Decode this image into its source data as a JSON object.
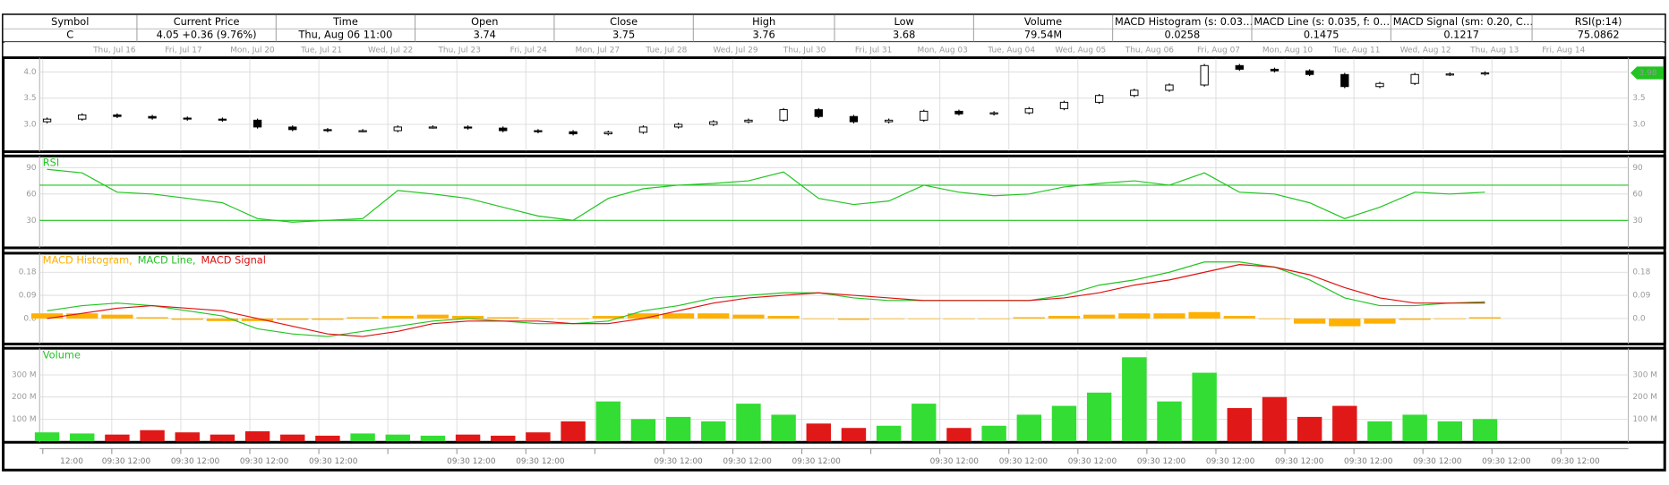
{
  "header": [
    {
      "label": "Symbol",
      "value": "C"
    },
    {
      "label": "Current Price",
      "value": "4.05 +0.36 (9.76%)"
    },
    {
      "label": "Time",
      "value": "Thu, Aug 06  11:00"
    },
    {
      "label": "Open",
      "value": "3.74"
    },
    {
      "label": "Close",
      "value": "3.75"
    },
    {
      "label": "High",
      "value": "3.76"
    },
    {
      "label": "Low",
      "value": "3.68"
    },
    {
      "label": "Volume",
      "value": "79.54M"
    },
    {
      "label": "MACD Histogram (s: 0.03…",
      "value": "0.0258"
    },
    {
      "label": "MACD Line (s: 0.035, f: 0…",
      "value": "0.1475"
    },
    {
      "label": "MACD Signal (sm: 0.20, C…",
      "value": "0.1217"
    },
    {
      "label": "RSI(p:14)",
      "value": "75.0862"
    }
  ],
  "date_labels": [
    "Thu, Jul 16",
    "Fri, Jul 17",
    "Mon, Jul 20",
    "Tue, Jul 21",
    "Wed, Jul 22",
    "Thu, Jul 23",
    "Fri, Jul 24",
    "Mon, Jul 27",
    "Tue, Jul 28",
    "Wed, Jul 29",
    "Thu, Jul 30",
    "Fri, Jul 31",
    "Mon, Aug 03",
    "Tue, Aug 04",
    "Wed, Aug 05",
    "Thu, Aug 06",
    "Fri, Aug 07",
    "Mon, Aug 10",
    "Tue, Aug 11",
    "Wed, Aug 12",
    "Thu, Aug 13",
    "Fri, Aug 14"
  ],
  "time_labels": [
    "12:00",
    "09:30 12:00",
    "09:30 12:00",
    "09:30 12:00",
    "09:30 12:00",
    null,
    "09:30 12:00",
    "09:30 12:00",
    null,
    "09:30 12:00",
    "09:30 12:00",
    "09:30 12:00",
    null,
    "09:30 12:00",
    "09:30 12:00",
    "09:30 12:00",
    "09:30 12:00",
    "09:30 12:00",
    "09:30 12:00",
    "09:30 12:00",
    "09:30 12:00",
    "09:30 12:00",
    "09:30 12:00"
  ],
  "chart_data": [
    {
      "type": "candlestick",
      "up_color": "#ffffff",
      "down_color": "#000000",
      "grid": true,
      "ylim": [
        2.5,
        4.25
      ],
      "yticks": [
        {
          "value": 3,
          "label": "3.0"
        },
        {
          "value": 3.5,
          "label": "3.5"
        },
        {
          "value": 4,
          "label": "4.0"
        }
      ],
      "last_label": "3.98",
      "last_color": "#22c422",
      "open": [
        3.05,
        3.1,
        3.18,
        3.15,
        3.12,
        3.1,
        3.08,
        2.95,
        2.9,
        2.88,
        2.88,
        2.95,
        2.95,
        2.93,
        2.88,
        2.86,
        2.82,
        2.85,
        2.95,
        3.0,
        3.05,
        3.08,
        3.28,
        3.15,
        3.05,
        3.08,
        3.25,
        3.2,
        3.22,
        3.3,
        3.42,
        3.55,
        3.65,
        3.75,
        4.12,
        4.05,
        4.02,
        3.95,
        3.72,
        3.78,
        3.95,
        3.96
      ],
      "high": [
        3.13,
        3.21,
        3.21,
        3.18,
        3.15,
        3.13,
        3.11,
        2.98,
        2.93,
        2.91,
        2.98,
        2.98,
        2.98,
        2.96,
        2.91,
        2.89,
        2.88,
        2.98,
        3.03,
        3.08,
        3.11,
        3.31,
        3.31,
        3.18,
        3.11,
        3.28,
        3.28,
        3.25,
        3.33,
        3.45,
        3.58,
        3.68,
        3.78,
        4.15,
        4.15,
        4.08,
        4.05,
        3.98,
        3.81,
        3.98,
        3.99,
        4.01
      ],
      "low": [
        3.02,
        3.07,
        3.12,
        3.09,
        3.07,
        3.05,
        2.92,
        2.87,
        2.85,
        2.85,
        2.85,
        2.92,
        2.9,
        2.85,
        2.83,
        2.79,
        2.79,
        2.82,
        2.92,
        2.97,
        3.02,
        3.05,
        3.12,
        3.02,
        3.02,
        3.05,
        3.17,
        3.17,
        3.19,
        3.27,
        3.39,
        3.52,
        3.62,
        3.72,
        4.02,
        3.99,
        3.92,
        3.69,
        3.69,
        3.75,
        3.92,
        3.93
      ],
      "close": [
        3.1,
        3.18,
        3.15,
        3.12,
        3.1,
        3.08,
        2.95,
        2.9,
        2.88,
        2.88,
        2.95,
        2.95,
        2.93,
        2.88,
        2.86,
        2.82,
        2.85,
        2.95,
        3.0,
        3.05,
        3.08,
        3.28,
        3.15,
        3.05,
        3.08,
        3.25,
        3.2,
        3.22,
        3.3,
        3.42,
        3.55,
        3.65,
        3.75,
        4.12,
        4.05,
        4.02,
        3.95,
        3.72,
        3.78,
        3.95,
        3.96,
        3.98
      ]
    },
    {
      "type": "line",
      "title": "RSI",
      "title_color": "#22c422",
      "grid": true,
      "ylim": [
        0,
        102
      ],
      "yticks": [
        30,
        60,
        90
      ],
      "hlines": [
        30,
        70
      ],
      "hline_color": "#22c422",
      "series": [
        {
          "name": "RSI",
          "color": "#22c422",
          "values": [
            88,
            84,
            62,
            60,
            55,
            50,
            32,
            28,
            30,
            32,
            64,
            60,
            55,
            45,
            35,
            30,
            55,
            66,
            70,
            72,
            75,
            85,
            55,
            48,
            52,
            70,
            62,
            58,
            60,
            68,
            72,
            75,
            70,
            84,
            62,
            60,
            50,
            32,
            45,
            62,
            60,
            62
          ]
        }
      ]
    },
    {
      "type": "combo",
      "grid": true,
      "ylim": [
        -0.095,
        0.25
      ],
      "yticks": [
        {
          "value": 0,
          "label": "0.0"
        },
        0.09,
        0.18
      ],
      "series": [
        {
          "name": "MACD Histogram,",
          "type": "bar",
          "color": "#ffb000",
          "values": [
            0.02,
            0.02,
            0.015,
            0.005,
            -0.005,
            -0.01,
            -0.01,
            -0.005,
            -0.005,
            0.005,
            0.01,
            0.015,
            0.01,
            0.005,
            0,
            0,
            0.01,
            0.02,
            0.02,
            0.02,
            0.015,
            0.01,
            0,
            -0.005,
            0,
            0,
            0,
            0,
            0.005,
            0.01,
            0.015,
            0.02,
            0.02,
            0.025,
            0.01,
            0,
            -0.02,
            -0.03,
            -0.02,
            -0.005,
            0,
            0.005
          ]
        },
        {
          "name": "MACD Line,",
          "type": "line",
          "color": "#22c422",
          "values": [
            0.03,
            0.05,
            0.06,
            0.05,
            0.03,
            0.01,
            -0.04,
            -0.06,
            -0.07,
            -0.05,
            -0.03,
            -0.01,
            0,
            -0.01,
            -0.02,
            -0.02,
            -0.01,
            0.03,
            0.05,
            0.08,
            0.09,
            0.1,
            0.1,
            0.08,
            0.07,
            0.07,
            0.07,
            0.07,
            0.07,
            0.09,
            0.13,
            0.15,
            0.18,
            0.22,
            0.22,
            0.2,
            0.15,
            0.08,
            0.05,
            0.05,
            0.06,
            0.065
          ]
        },
        {
          "name": "MACD Signal",
          "type": "line",
          "color": "#dd1111",
          "values": [
            0,
            0.02,
            0.04,
            0.05,
            0.04,
            0.03,
            0,
            -0.03,
            -0.06,
            -0.07,
            -0.05,
            -0.02,
            -0.01,
            -0.01,
            -0.01,
            -0.02,
            -0.02,
            0,
            0.03,
            0.06,
            0.08,
            0.09,
            0.1,
            0.09,
            0.08,
            0.07,
            0.07,
            0.07,
            0.07,
            0.08,
            0.1,
            0.13,
            0.15,
            0.18,
            0.21,
            0.2,
            0.17,
            0.12,
            0.08,
            0.06,
            0.06,
            0.06
          ]
        }
      ]
    },
    {
      "type": "bar",
      "title": "Volume",
      "title_color": "#22c422",
      "grid": true,
      "ylim": [
        0,
        416
      ],
      "yticks": [
        {
          "value": 100,
          "label": "100 M"
        },
        {
          "value": 200,
          "label": "200 M"
        },
        {
          "value": 300,
          "label": "300 M"
        }
      ],
      "up_color": "#33dd33",
      "down_color": "#e01818",
      "values": [
        40,
        35,
        30,
        50,
        40,
        30,
        45,
        30,
        25,
        35,
        30,
        25,
        30,
        25,
        40,
        90,
        180,
        100,
        110,
        90,
        170,
        120,
        80,
        60,
        70,
        170,
        60,
        70,
        120,
        160,
        220,
        380,
        180,
        310,
        150,
        200,
        110,
        160,
        90,
        120,
        90,
        100
      ]
    }
  ]
}
